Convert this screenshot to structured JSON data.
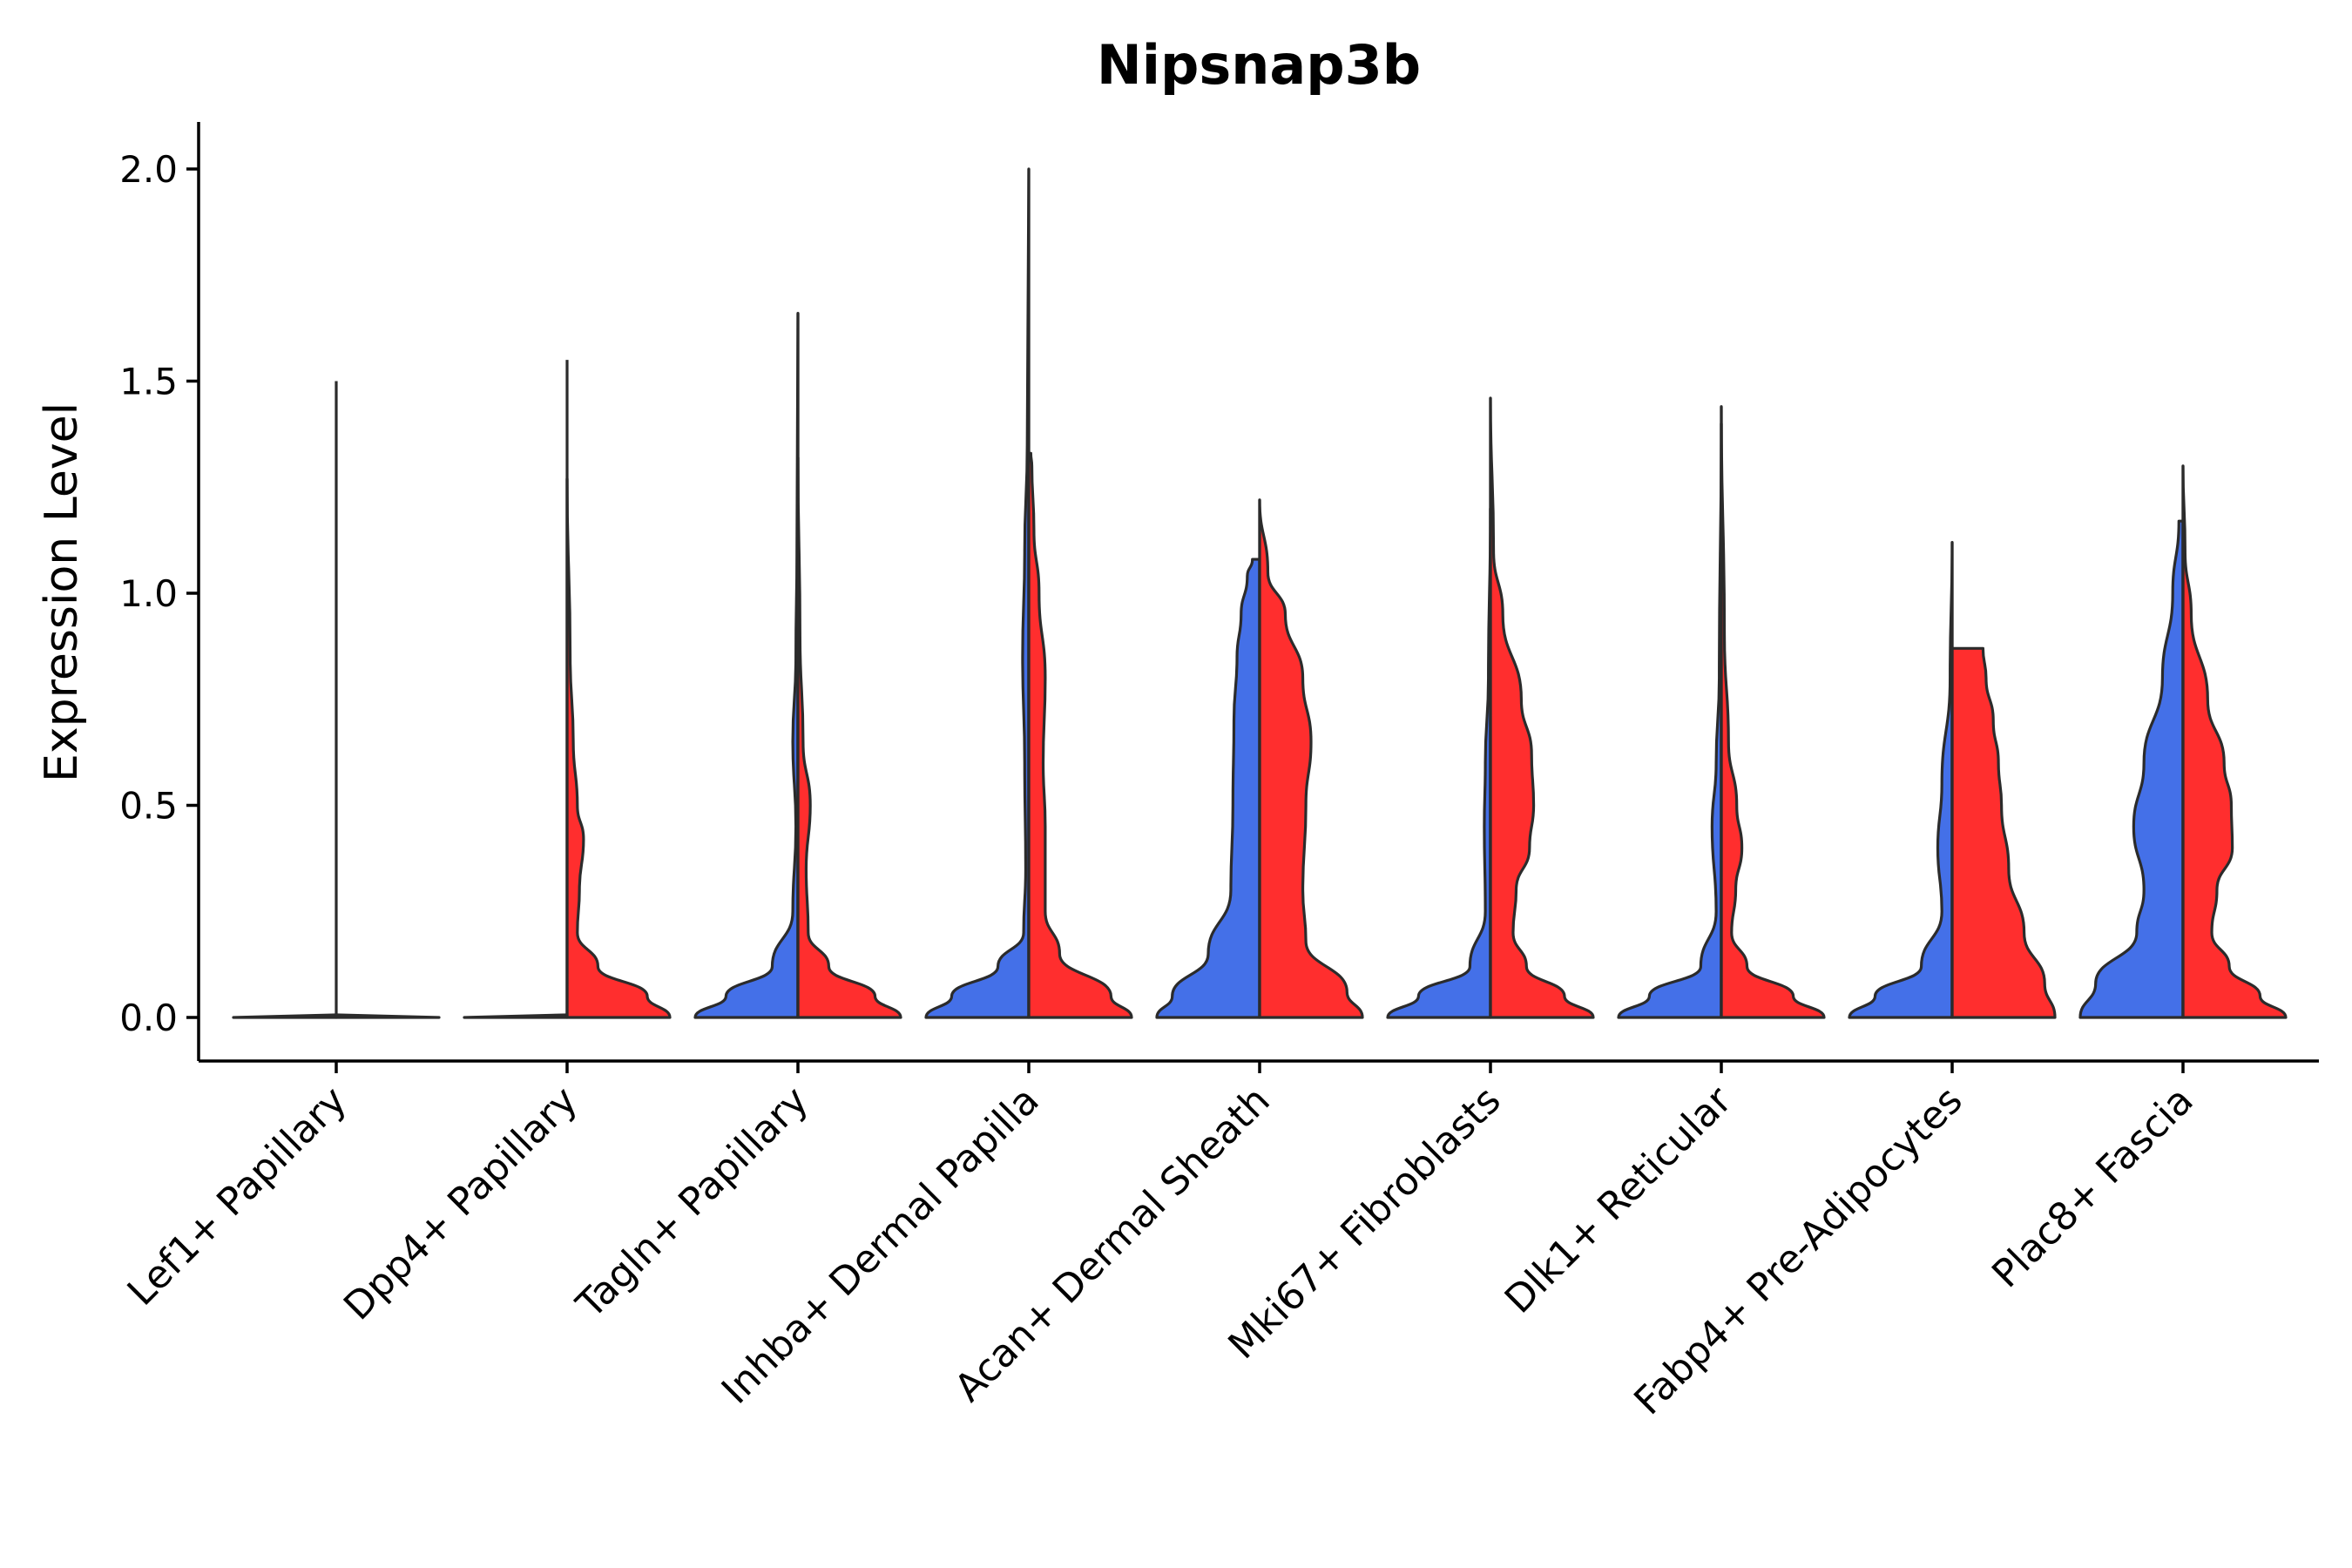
{
  "chart_data": {
    "type": "violin",
    "title": "Nipsnap3b",
    "xlabel": "",
    "ylabel": "Expression Level",
    "ylim": [
      -0.1,
      2.1
    ],
    "yticks": [
      0.0,
      0.5,
      1.0,
      1.5,
      2.0
    ],
    "ytick_labels": [
      "0.0",
      "0.5",
      "1.0",
      "1.5",
      "2.0"
    ],
    "grid": false,
    "legend": "none",
    "split_colors": {
      "left": "#4470E8",
      "right": "#FF2E2E"
    },
    "categories": [
      "Lef1+ Papillary",
      "Dpp4+ Papillary",
      "Tagln+ Papillary",
      "Inhba+ Dermal Papilla",
      "Acan+ Dermal Sheath",
      "Mki67+ Fibroblasts",
      "Dlk1+ Reticular",
      "Fabp4+ Pre-Adipocytes",
      "Plac8+ Fascia"
    ],
    "series": [
      {
        "name": "left",
        "color": "#4470E8",
        "max_values": [
          1.5,
          1.55,
          1.66,
          2.0,
          1.08,
          1.2,
          1.4,
          1.12,
          1.17
        ],
        "profiles": [
          [
            [
              0,
              0.0
            ],
            [
              0.01,
              0.002
            ],
            [
              1.5,
              0.0
            ]
          ],
          [
            [
              0,
              0.0
            ],
            [
              0.01,
              0.002
            ],
            [
              1.55,
              0.0
            ]
          ],
          [
            [
              0,
              1.0
            ],
            [
              0.05,
              0.7
            ],
            [
              0.12,
              0.25
            ],
            [
              0.25,
              0.05
            ],
            [
              0.45,
              0.02
            ],
            [
              0.65,
              0.05
            ],
            [
              0.85,
              0.02
            ],
            [
              1.1,
              0.01
            ],
            [
              1.66,
              0.0
            ]
          ],
          [
            [
              0,
              1.0
            ],
            [
              0.05,
              0.75
            ],
            [
              0.12,
              0.3
            ],
            [
              0.2,
              0.05
            ],
            [
              0.35,
              0.03
            ],
            [
              0.6,
              0.04
            ],
            [
              0.85,
              0.06
            ],
            [
              1.1,
              0.04
            ],
            [
              1.35,
              0.015
            ],
            [
              2.0,
              0.0
            ]
          ],
          [
            [
              0,
              1.0
            ],
            [
              0.05,
              0.85
            ],
            [
              0.15,
              0.5
            ],
            [
              0.3,
              0.28
            ],
            [
              0.5,
              0.26
            ],
            [
              0.7,
              0.25
            ],
            [
              0.85,
              0.22
            ],
            [
              0.95,
              0.18
            ],
            [
              1.04,
              0.12
            ],
            [
              1.08,
              0.07
            ]
          ],
          [
            [
              0,
              1.0
            ],
            [
              0.05,
              0.7
            ],
            [
              0.12,
              0.2
            ],
            [
              0.25,
              0.05
            ],
            [
              0.45,
              0.06
            ],
            [
              0.6,
              0.05
            ],
            [
              0.8,
              0.02
            ],
            [
              1.2,
              0.0
            ]
          ],
          [
            [
              0,
              1.0
            ],
            [
              0.05,
              0.7
            ],
            [
              0.12,
              0.2
            ],
            [
              0.25,
              0.05
            ],
            [
              0.45,
              0.09
            ],
            [
              0.6,
              0.05
            ],
            [
              0.8,
              0.02
            ],
            [
              1.4,
              0.0
            ]
          ],
          [
            [
              0,
              1.0
            ],
            [
              0.05,
              0.75
            ],
            [
              0.12,
              0.3
            ],
            [
              0.25,
              0.1
            ],
            [
              0.4,
              0.14
            ],
            [
              0.55,
              0.1
            ],
            [
              0.8,
              0.02
            ],
            [
              1.12,
              0.0
            ]
          ],
          [
            [
              0,
              1.0
            ],
            [
              0.08,
              0.85
            ],
            [
              0.2,
              0.45
            ],
            [
              0.3,
              0.38
            ],
            [
              0.45,
              0.48
            ],
            [
              0.6,
              0.38
            ],
            [
              0.8,
              0.2
            ],
            [
              1.0,
              0.1
            ],
            [
              1.17,
              0.04
            ]
          ]
        ]
      },
      {
        "name": "right",
        "color": "#FF2E2E",
        "max_values": [
          null,
          1.27,
          1.32,
          1.33,
          1.22,
          1.46,
          1.44,
          0.87,
          1.3
        ],
        "profiles": [
          [],
          [
            [
              0,
              1.0
            ],
            [
              0.05,
              0.78
            ],
            [
              0.12,
              0.3
            ],
            [
              0.2,
              0.1
            ],
            [
              0.3,
              0.12
            ],
            [
              0.42,
              0.16
            ],
            [
              0.5,
              0.1
            ],
            [
              0.65,
              0.06
            ],
            [
              0.85,
              0.03
            ],
            [
              1.27,
              0.0
            ]
          ],
          [
            [
              0,
              1.0
            ],
            [
              0.05,
              0.75
            ],
            [
              0.12,
              0.3
            ],
            [
              0.2,
              0.1
            ],
            [
              0.35,
              0.08
            ],
            [
              0.5,
              0.12
            ],
            [
              0.65,
              0.05
            ],
            [
              0.9,
              0.02
            ],
            [
              1.32,
              0.0
            ]
          ],
          [
            [
              0,
              1.0
            ],
            [
              0.05,
              0.8
            ],
            [
              0.15,
              0.3
            ],
            [
              0.25,
              0.16
            ],
            [
              0.45,
              0.16
            ],
            [
              0.6,
              0.14
            ],
            [
              0.8,
              0.16
            ],
            [
              1.0,
              0.1
            ],
            [
              1.15,
              0.05
            ],
            [
              1.3,
              0.03
            ],
            [
              1.33,
              0.02
            ]
          ],
          [
            [
              0,
              1.0
            ],
            [
              0.06,
              0.85
            ],
            [
              0.18,
              0.45
            ],
            [
              0.3,
              0.42
            ],
            [
              0.5,
              0.45
            ],
            [
              0.65,
              0.5
            ],
            [
              0.8,
              0.42
            ],
            [
              0.95,
              0.25
            ],
            [
              1.05,
              0.08
            ],
            [
              1.22,
              0.0
            ]
          ],
          [
            [
              0,
              1.0
            ],
            [
              0.05,
              0.72
            ],
            [
              0.12,
              0.35
            ],
            [
              0.2,
              0.22
            ],
            [
              0.3,
              0.25
            ],
            [
              0.4,
              0.38
            ],
            [
              0.5,
              0.42
            ],
            [
              0.62,
              0.4
            ],
            [
              0.75,
              0.3
            ],
            [
              0.95,
              0.12
            ],
            [
              1.1,
              0.03
            ],
            [
              1.46,
              0.0
            ]
          ],
          [
            [
              0,
              1.0
            ],
            [
              0.05,
              0.7
            ],
            [
              0.12,
              0.25
            ],
            [
              0.2,
              0.1
            ],
            [
              0.3,
              0.14
            ],
            [
              0.4,
              0.2
            ],
            [
              0.5,
              0.15
            ],
            [
              0.65,
              0.07
            ],
            [
              0.9,
              0.03
            ],
            [
              1.44,
              0.0
            ]
          ],
          [
            [
              0,
              1.0
            ],
            [
              0.08,
              0.9
            ],
            [
              0.2,
              0.7
            ],
            [
              0.35,
              0.55
            ],
            [
              0.5,
              0.48
            ],
            [
              0.6,
              0.45
            ],
            [
              0.7,
              0.4
            ],
            [
              0.8,
              0.33
            ],
            [
              0.87,
              0.3
            ]
          ],
          [
            [
              0,
              1.0
            ],
            [
              0.05,
              0.75
            ],
            [
              0.12,
              0.45
            ],
            [
              0.2,
              0.28
            ],
            [
              0.3,
              0.33
            ],
            [
              0.4,
              0.48
            ],
            [
              0.5,
              0.47
            ],
            [
              0.6,
              0.4
            ],
            [
              0.75,
              0.24
            ],
            [
              0.95,
              0.08
            ],
            [
              1.1,
              0.02
            ],
            [
              1.3,
              0.0
            ]
          ]
        ]
      }
    ]
  }
}
